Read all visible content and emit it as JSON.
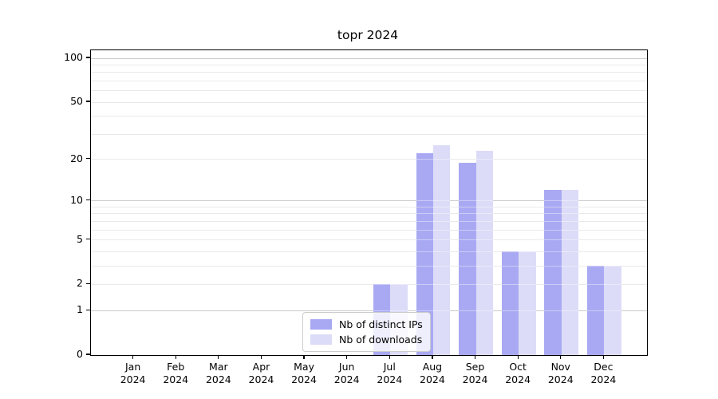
{
  "chart_data": {
    "type": "bar",
    "title": "topr 2024",
    "categories": [
      "Jan",
      "Feb",
      "Mar",
      "Apr",
      "May",
      "Jun",
      "Jul",
      "Aug",
      "Sep",
      "Oct",
      "Nov",
      "Dec"
    ],
    "x_sublabel": "2024",
    "series": [
      {
        "name": "Nb of distinct IPs",
        "color": "#a9a9f3",
        "values": [
          0,
          0,
          0,
          0,
          0,
          0,
          2,
          22,
          19,
          4,
          12,
          3
        ]
      },
      {
        "name": "Nb of downloads",
        "color": "#dcdcf8",
        "values": [
          0,
          0,
          0,
          0,
          0,
          0,
          2,
          25,
          23,
          4,
          12,
          3
        ]
      }
    ],
    "y_scale": "log1p",
    "y_axis_ticks": [
      0,
      1,
      2,
      5,
      10,
      20,
      50,
      100
    ],
    "y_major_gridlines": [
      1,
      10,
      100
    ],
    "y_minor_gridlines": [
      2,
      3,
      4,
      5,
      6,
      7,
      8,
      9,
      20,
      30,
      40,
      50,
      60,
      70,
      80,
      90
    ],
    "ylim": [
      0,
      113
    ],
    "grid": true,
    "legend_position": "lower center"
  },
  "colors": {
    "background": "#ffffff",
    "spine": "#000000",
    "grid_major": "#c8c8c8",
    "grid_minor": "#eaeaea",
    "legend_border": "#cccccc"
  }
}
